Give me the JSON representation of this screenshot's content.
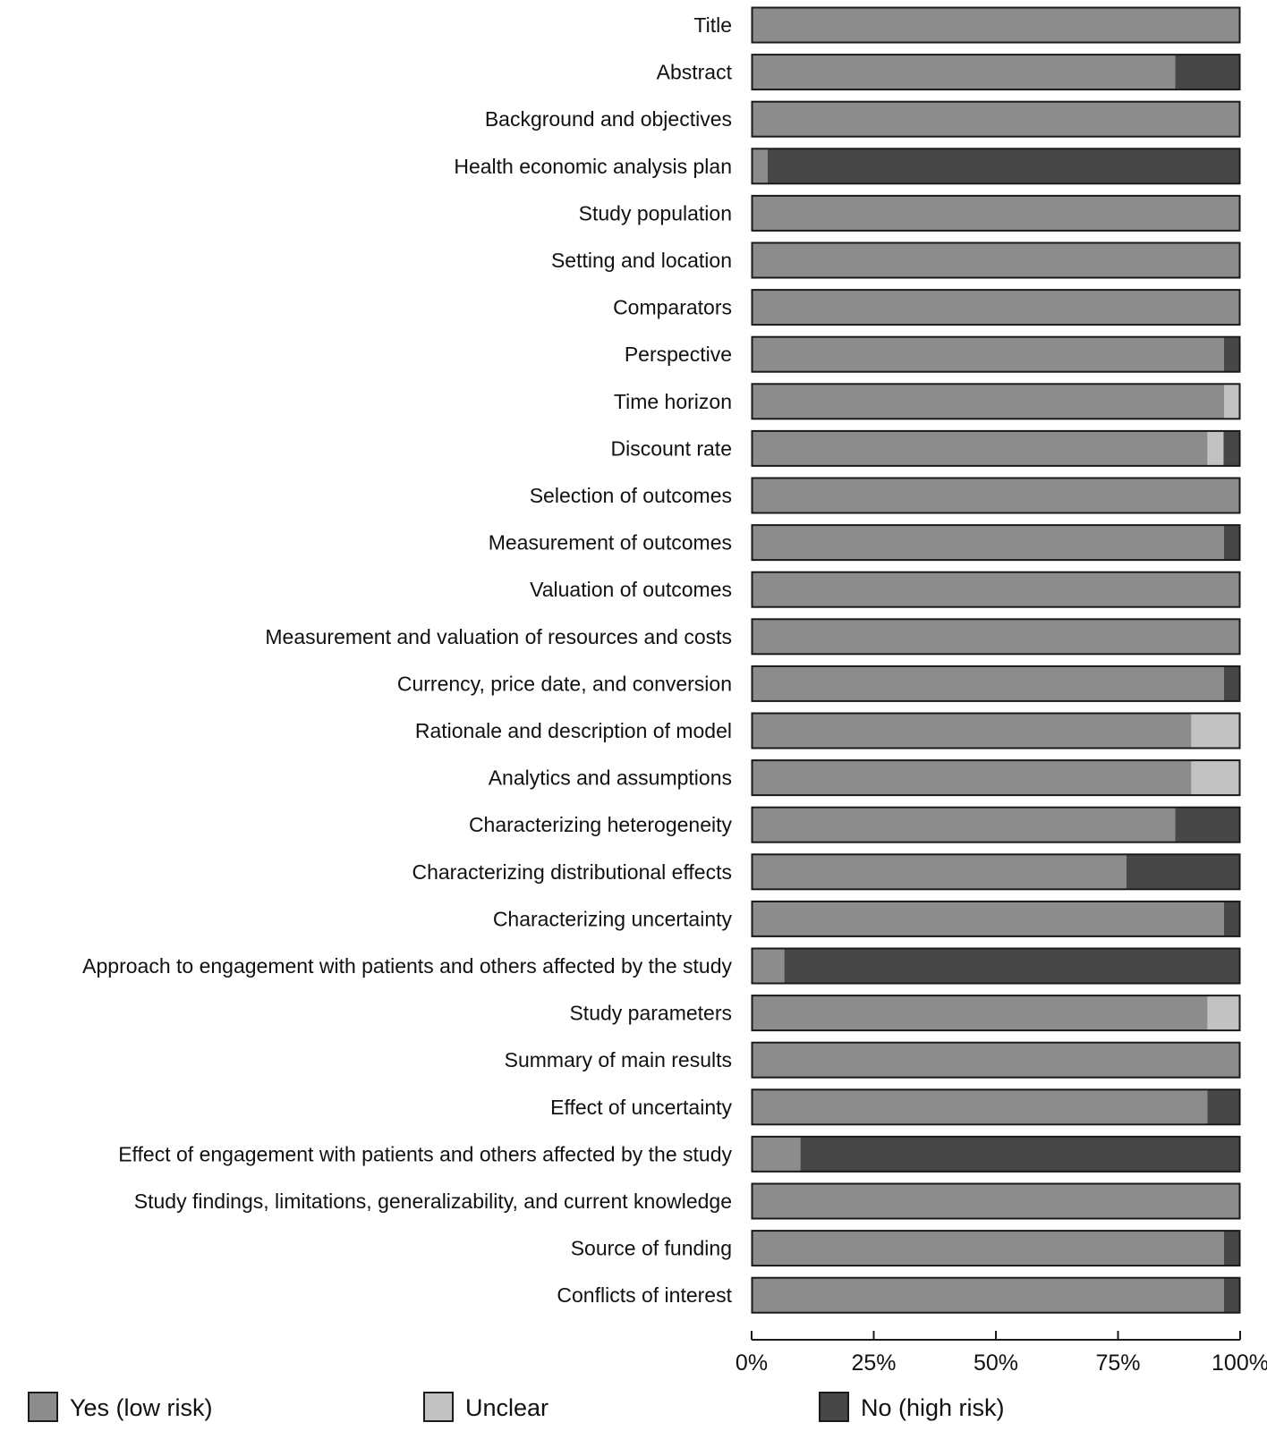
{
  "chart_data": {
    "type": "bar",
    "orientation": "horizontal",
    "stacked": true,
    "title": "",
    "xlabel": "",
    "ylabel": "",
    "xlim": [
      0,
      100
    ],
    "x_ticks": [
      "0%",
      "25%",
      "50%",
      "75%",
      "100%"
    ],
    "grid": false,
    "legend_position": "bottom",
    "categories": [
      "Title",
      "Abstract",
      "Background and objectives",
      "Health economic analysis plan",
      "Study population",
      "Setting and location",
      "Comparators",
      "Perspective",
      "Time horizon",
      "Discount rate",
      "Selection of outcomes",
      "Measurement of outcomes",
      "Valuation of outcomes",
      "Measurement and valuation of resources and costs",
      "Currency, price date, and conversion",
      "Rationale and description of model",
      "Analytics and assumptions",
      "Characterizing heterogeneity",
      "Characterizing distributional effects",
      "Characterizing uncertainty",
      "Approach to engagement with patients and others affected by the study",
      "Study parameters",
      "Summary of main results",
      "Effect of uncertainty",
      "Effect of engagement with patients and others affected by the study",
      "Study findings, limitations, generalizability, and current knowledge",
      "Source of funding",
      "Conflicts of interest"
    ],
    "series": [
      {
        "name": "Yes (low risk)",
        "color": "#8c8c8c",
        "values": [
          100,
          86.7,
          100,
          3.3,
          100,
          100,
          100,
          96.7,
          96.7,
          93.3,
          100,
          96.7,
          100,
          100,
          96.7,
          90,
          90,
          86.7,
          76.7,
          96.7,
          6.7,
          93.3,
          100,
          93.3,
          10,
          100,
          96.7,
          96.7
        ]
      },
      {
        "name": "Unclear",
        "color": "#c2c2c2",
        "values": [
          0,
          0,
          0,
          0,
          0,
          0,
          0,
          0,
          3.3,
          3.3,
          0,
          0,
          0,
          0,
          0,
          10,
          10,
          0,
          0,
          0,
          0,
          6.7,
          0,
          0,
          0,
          0,
          0,
          0
        ]
      },
      {
        "name": "No (high risk)",
        "color": "#474747",
        "values": [
          0,
          13.3,
          0,
          96.7,
          0,
          0,
          0,
          3.3,
          0,
          3.3,
          0,
          3.3,
          0,
          0,
          3.3,
          0,
          0,
          13.3,
          23.3,
          3.3,
          93.3,
          0,
          0,
          6.7,
          90,
          0,
          3.3,
          3.3
        ]
      }
    ]
  }
}
